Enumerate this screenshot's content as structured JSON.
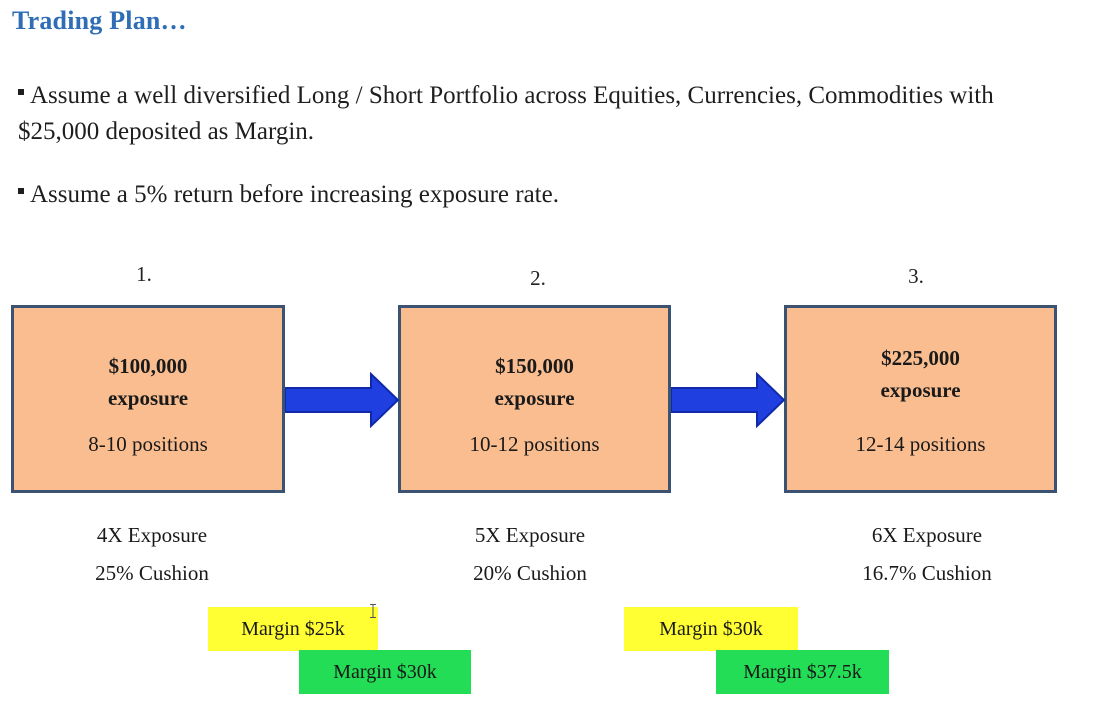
{
  "title": "Trading Plan…",
  "bullets": {
    "b1_line1": "Assume a well diversified Long / Short Portfolio across Equities, Currencies, Commodities with",
    "b1_line2": "$25,000 deposited as Margin.",
    "b2": "Assume a 5% return before increasing exposure rate."
  },
  "steps": [
    {
      "number": "1.",
      "amount": "$100,000",
      "exposure_word": "exposure",
      "positions": "8-10 positions",
      "multiplier": "4X Exposure",
      "cushion": "25% Cushion"
    },
    {
      "number": "2.",
      "amount": "$150,000",
      "exposure_word": "exposure",
      "positions": "10-12 positions",
      "multiplier": "5X Exposure",
      "cushion": "20% Cushion"
    },
    {
      "number": "3.",
      "amount": "$225,000",
      "exposure_word": "exposure",
      "positions": "12-14 positions",
      "multiplier": "6X Exposure",
      "cushion": "16.7% Cushion"
    }
  ],
  "margins": [
    {
      "label": "Margin $25k",
      "color": "#ffff33"
    },
    {
      "label": "Margin $30k",
      "color": "#22dd55"
    },
    {
      "label": "Margin $30k",
      "color": "#ffff33"
    },
    {
      "label": "Margin $37.5k",
      "color": "#22dd55"
    }
  ],
  "colors": {
    "title": "#2f6db5",
    "box_fill": "#f9bd8f",
    "box_border": "#3b5273",
    "arrow": "#1f3fe0"
  }
}
